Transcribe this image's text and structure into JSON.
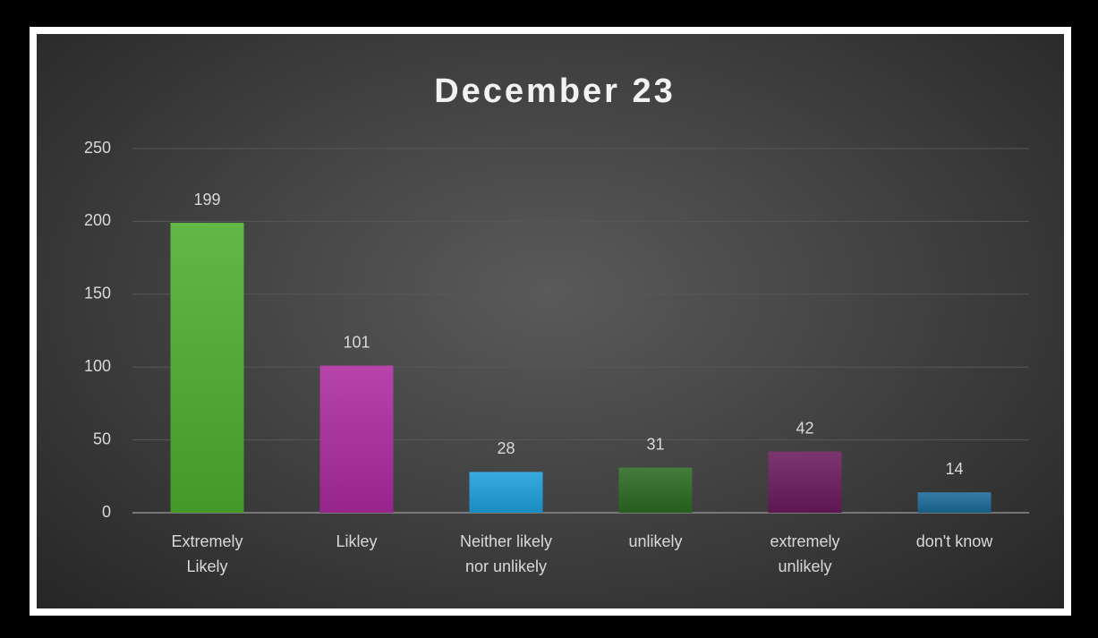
{
  "chart_data": {
    "type": "bar",
    "title": "December 23",
    "categories": [
      "Extremely Likely",
      "Likley",
      "Neither likely nor unlikely",
      "unlikely",
      "extremely unlikely",
      "don't know"
    ],
    "values": [
      199,
      101,
      28,
      31,
      42,
      14
    ],
    "colors": [
      "#4cae2e",
      "#ac2a9e",
      "#1e9fdc",
      "#2c6a22",
      "#6a1a5c",
      "#1a6a98"
    ],
    "ylim": [
      0,
      250
    ],
    "yticks": [
      0,
      50,
      100,
      150,
      200,
      250
    ],
    "grid": true
  }
}
